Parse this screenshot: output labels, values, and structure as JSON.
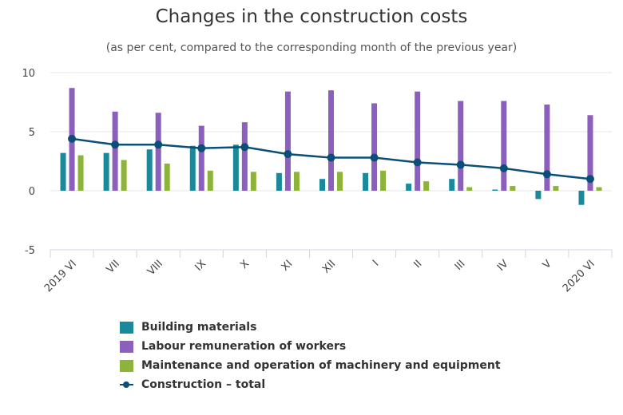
{
  "chart_data": {
    "type": "bar",
    "title": "Changes in the construction costs",
    "subtitle": "(as per cent, compared to the corresponding month of the previous year)",
    "categories": [
      "2019 VI",
      "VII",
      "VIII",
      "IX",
      "X",
      "XI",
      "XII",
      "I",
      "II",
      "III",
      "IV",
      "V",
      "2020 VI"
    ],
    "ylim": [
      -5,
      10
    ],
    "yticks": [
      -5,
      0,
      5,
      10
    ],
    "grid": true,
    "legend_position": "bottom",
    "series": [
      {
        "name": "Building materials",
        "type": "bar",
        "color": "#1a8a9a",
        "values": [
          3.2,
          3.2,
          3.5,
          3.8,
          3.9,
          1.5,
          1.0,
          1.5,
          0.6,
          1.0,
          0.1,
          -0.7,
          -1.2
        ]
      },
      {
        "name": "Labour remuneration of workers",
        "type": "bar",
        "color": "#8c5fbf",
        "values": [
          8.7,
          6.7,
          6.6,
          5.5,
          5.8,
          8.4,
          8.5,
          7.4,
          8.4,
          7.6,
          7.6,
          7.3,
          6.4
        ]
      },
      {
        "name": "Maintenance and operation of machinery and equipment",
        "type": "bar",
        "color": "#8db33a",
        "values": [
          3.0,
          2.6,
          2.3,
          1.7,
          1.6,
          1.6,
          1.6,
          1.7,
          0.8,
          0.3,
          0.4,
          0.4,
          0.3
        ]
      },
      {
        "name": "Construction – total",
        "type": "line",
        "color": "#0b4f78",
        "values": [
          4.4,
          3.9,
          3.9,
          3.6,
          3.7,
          3.1,
          2.8,
          2.8,
          2.4,
          2.2,
          1.9,
          1.4,
          1.0
        ]
      }
    ]
  }
}
